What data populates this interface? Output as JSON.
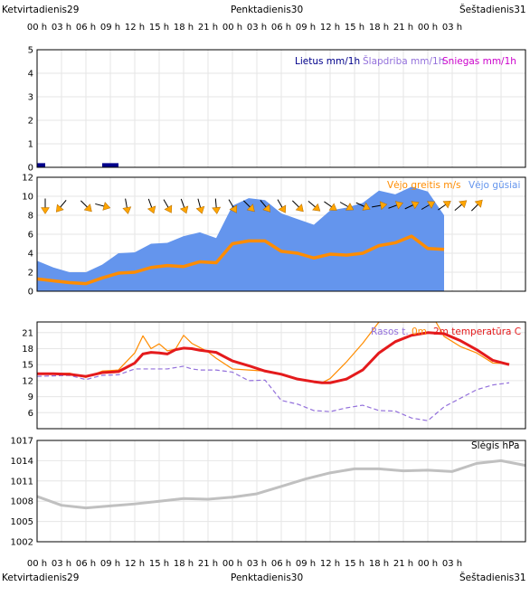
{
  "days": {
    "top": [
      "Ketvirtadienis29",
      "Penktadienis30",
      "Šeštadienis31"
    ],
    "bottom": [
      "Ketvirtadienis29",
      "Penktadienis30",
      "Šeštadienis31"
    ]
  },
  "hour_labels": [
    "00 h",
    "03 h",
    "06 h",
    "09 h",
    "12 h",
    "15 h",
    "18 h",
    "21 h",
    "00 h",
    "03 h",
    "06 h",
    "09 h",
    "12 h",
    "15 h",
    "18 h",
    "21 h",
    "00 h",
    "03 h"
  ],
  "colors": {
    "grid": "#e6e6e6",
    "frame": "#000000",
    "rain": "#00008b",
    "sleet": "#9370db",
    "snow": "#cc00cc",
    "wind": "#ff8c00",
    "gust": "#6495ed",
    "arrow": "#ffa500",
    "dew": "#9370db",
    "temp": "#e41a1c",
    "temp_forecast": "#ff8c00",
    "pressure": "#c0c0c0"
  },
  "chart_data": [
    {
      "type": "bar",
      "panel": "precipitation",
      "legend": [
        "Lietus mm/1h",
        "Šlapdriba mm/1h",
        "Sniegas mm/1h"
      ],
      "ylim": [
        0,
        5
      ],
      "yticks": [
        "0",
        "1",
        "2",
        "3",
        "4",
        "5"
      ],
      "x_hours": [
        0,
        1,
        2,
        3,
        4,
        5,
        6,
        7,
        8,
        9,
        10,
        11,
        12,
        13
      ],
      "series": [
        {
          "name": "Lietus mm/1h",
          "values": [
            0.1,
            0,
            0,
            0,
            0,
            0,
            0,
            0,
            0.1,
            0.1,
            0,
            0,
            0,
            0
          ]
        }
      ]
    },
    {
      "type": "area",
      "panel": "wind",
      "legend": [
        "Vėjo greitis m/s",
        "Vėjo gūsiai"
      ],
      "ylim": [
        0,
        12
      ],
      "yticks": [
        "0",
        "2",
        "4",
        "6",
        "8",
        "10",
        "12"
      ],
      "x_hours": [
        0,
        2,
        4,
        6,
        8,
        10,
        12,
        14,
        16,
        18,
        20,
        22,
        24,
        26,
        28,
        30,
        32,
        34,
        36,
        38,
        40,
        42,
        44,
        46,
        48,
        50
      ],
      "gusts": [
        3.2,
        2.5,
        2.0,
        2.0,
        2.8,
        4.0,
        4.1,
        5.0,
        5.1,
        5.8,
        6.2,
        5.6,
        9.0,
        9.8,
        9.6,
        8.2,
        7.6,
        7.0,
        8.5,
        8.8,
        9.3,
        10.6,
        10.2,
        11.0,
        10.5,
        8.0
      ],
      "speed": [
        1.3,
        1.1,
        0.9,
        0.8,
        1.4,
        1.9,
        2.0,
        2.5,
        2.7,
        2.6,
        3.1,
        3.0,
        5.0,
        5.3,
        5.3,
        4.2,
        4.0,
        3.5,
        3.9,
        3.8,
        4.0,
        4.8,
        5.1,
        5.8,
        4.5,
        4.4
      ],
      "arrows": {
        "x_hours": [
          1,
          3,
          6,
          8,
          11,
          14,
          16,
          18,
          20,
          22,
          24,
          26,
          28,
          30,
          32,
          34,
          36,
          38,
          40,
          42,
          44,
          46,
          48,
          50,
          52,
          54
        ],
        "rotation_deg": [
          90,
          130,
          45,
          15,
          80,
          70,
          60,
          70,
          75,
          85,
          60,
          45,
          50,
          60,
          45,
          40,
          35,
          30,
          25,
          -10,
          -20,
          -25,
          -30,
          -35,
          -40,
          -45
        ]
      }
    },
    {
      "type": "line",
      "panel": "temperature",
      "legend": [
        "Rasos t.",
        "0m",
        "2m temperatūra C"
      ],
      "ylim": [
        3,
        23
      ],
      "yticks": [
        "6",
        "9",
        "12",
        "15",
        "18",
        "21"
      ],
      "series": [
        {
          "name": "2m temperatūra C",
          "x_hours": [
            0,
            2,
            4,
            6,
            8,
            10,
            12,
            13,
            14,
            15,
            16,
            17,
            18,
            19,
            20,
            21,
            22,
            24,
            26,
            28,
            30,
            32,
            34,
            35,
            36,
            38,
            40,
            42,
            44,
            46,
            48,
            50,
            52,
            54,
            56,
            58
          ],
          "values": [
            13.3,
            13.3,
            13.2,
            12.8,
            13.5,
            13.7,
            15.3,
            17.0,
            17.3,
            17.2,
            17.0,
            17.8,
            18.1,
            18.0,
            17.7,
            17.5,
            17.3,
            15.7,
            14.8,
            13.8,
            13.2,
            12.3,
            11.8,
            11.6,
            11.6,
            12.3,
            14.0,
            17.2,
            19.3,
            20.5,
            21.0,
            20.8,
            19.5,
            17.8,
            15.8,
            15.0
          ]
        },
        {
          "name": "0m",
          "x_hours": [
            0,
            2,
            4,
            6,
            8,
            10,
            12,
            13,
            14,
            15,
            16,
            17,
            18,
            19,
            20,
            21,
            22,
            24,
            26,
            28,
            30,
            32,
            34,
            35,
            36,
            38,
            40,
            42,
            43,
            48,
            49,
            50,
            52,
            54,
            56,
            58
          ],
          "values": [
            13.3,
            13.3,
            13.4,
            12.6,
            13.8,
            14.0,
            17.2,
            20.4,
            18.0,
            18.9,
            17.6,
            17.9,
            20.5,
            19.0,
            18.2,
            17.4,
            16.2,
            14.2,
            14.0,
            13.8,
            13.2,
            12.2,
            11.8,
            11.6,
            12.4,
            15.5,
            19.0,
            23.0,
            23.0,
            23.0,
            23.0,
            20.3,
            18.4,
            17.2,
            15.3,
            15.2
          ]
        },
        {
          "name": "Rasos t.",
          "x_hours": [
            0,
            2,
            4,
            6,
            8,
            10,
            12,
            14,
            16,
            18,
            19,
            20,
            22,
            24,
            26,
            28,
            30,
            32,
            34,
            36,
            38,
            40,
            42,
            44,
            46,
            48,
            50,
            52,
            54,
            56,
            58
          ],
          "values": [
            12.8,
            12.9,
            13.0,
            12.2,
            13.0,
            13.1,
            14.2,
            14.2,
            14.2,
            14.7,
            14.2,
            14.0,
            14.0,
            13.6,
            12.0,
            12.1,
            8.3,
            7.6,
            6.4,
            6.2,
            6.9,
            7.4,
            6.4,
            6.3,
            5.0,
            4.5,
            7.1,
            8.7,
            10.3,
            11.2,
            11.6
          ]
        }
      ]
    },
    {
      "type": "line",
      "panel": "pressure",
      "legend": [
        "Slėgis hPa"
      ],
      "ylim": [
        1002,
        1017
      ],
      "yticks": [
        "1002",
        "1005",
        "1008",
        "1011",
        "1014",
        "1017"
      ],
      "series": [
        {
          "name": "Slėgis hPa",
          "x_hours": [
            0,
            3,
            6,
            9,
            12,
            15,
            18,
            21,
            24,
            27,
            30,
            33,
            36,
            39,
            42,
            45,
            48,
            51,
            54,
            57,
            60
          ],
          "values": [
            1008.7,
            1007.4,
            1007.0,
            1007.3,
            1007.6,
            1008.0,
            1008.4,
            1008.3,
            1008.6,
            1009.1,
            1010.2,
            1011.3,
            1012.2,
            1012.8,
            1012.8,
            1012.5,
            1012.6,
            1012.4,
            1013.6,
            1014.0,
            1013.3
          ]
        }
      ]
    }
  ]
}
